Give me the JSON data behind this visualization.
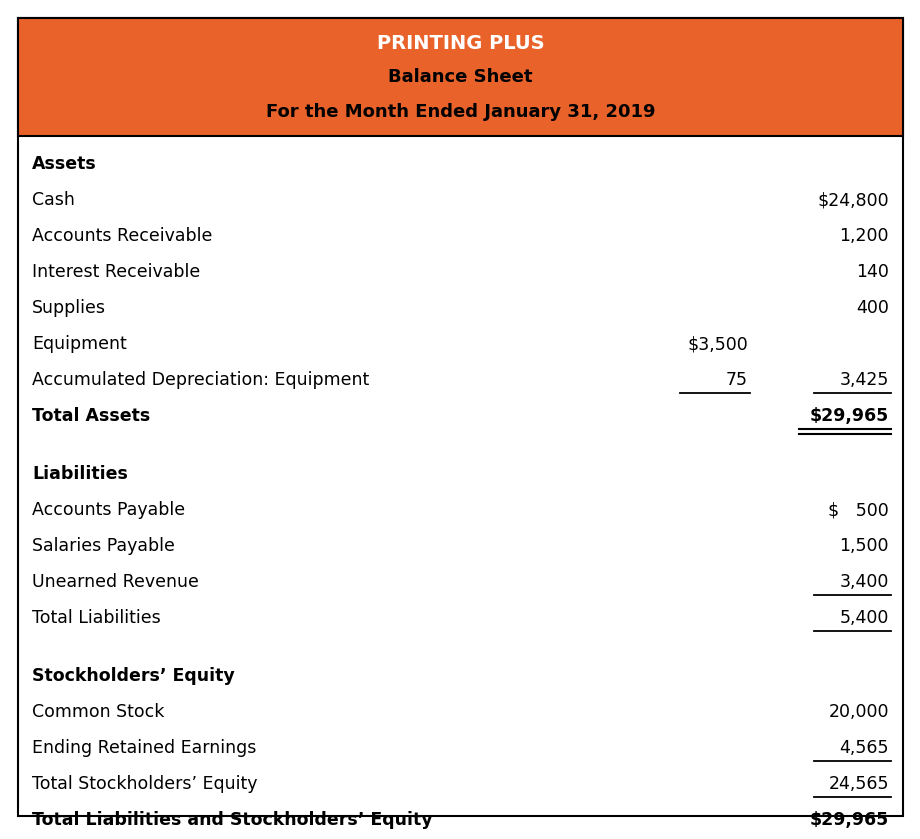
{
  "title_line1": "PRINTING PLUS",
  "title_line2": "Balance Sheet",
  "title_line3": "For the Month Ended January 31, 2019",
  "header_bg": "#E8622A",
  "header_text_color1": "#FFFFFF",
  "header_text_color2": "#000000",
  "border_color": "#000000",
  "bg_color": "#FFFFFF",
  "fig_width": 9.01,
  "fig_height": 8.14,
  "dpi": 100,
  "rows": [
    {
      "label": "Assets",
      "col1": "",
      "col2": "",
      "bold": true,
      "underline_col1": false,
      "underline_col2": false,
      "double_underline": false,
      "gap_before": false
    },
    {
      "label": "Cash",
      "col1": "",
      "col2": "$24,800",
      "bold": false,
      "underline_col1": false,
      "underline_col2": false,
      "double_underline": false,
      "gap_before": false
    },
    {
      "label": "Accounts Receivable",
      "col1": "",
      "col2": "1,200",
      "bold": false,
      "underline_col1": false,
      "underline_col2": false,
      "double_underline": false,
      "gap_before": false
    },
    {
      "label": "Interest Receivable",
      "col1": "",
      "col2": "140",
      "bold": false,
      "underline_col1": false,
      "underline_col2": false,
      "double_underline": false,
      "gap_before": false
    },
    {
      "label": "Supplies",
      "col1": "",
      "col2": "400",
      "bold": false,
      "underline_col1": false,
      "underline_col2": false,
      "double_underline": false,
      "gap_before": false
    },
    {
      "label": "Equipment",
      "col1": "$3,500",
      "col2": "",
      "bold": false,
      "underline_col1": false,
      "underline_col2": false,
      "double_underline": false,
      "gap_before": false
    },
    {
      "label": "Accumulated Depreciation: Equipment",
      "col1": "75",
      "col2": "3,425",
      "bold": false,
      "underline_col1": true,
      "underline_col2": true,
      "double_underline": false,
      "gap_before": false
    },
    {
      "label": "Total Assets",
      "col1": "",
      "col2": "$29,965",
      "bold": true,
      "underline_col1": false,
      "underline_col2": false,
      "double_underline": true,
      "gap_before": false
    },
    {
      "label": "Liabilities",
      "col1": "",
      "col2": "",
      "bold": true,
      "underline_col1": false,
      "underline_col2": false,
      "double_underline": false,
      "gap_before": true
    },
    {
      "label": "Accounts Payable",
      "col1": "",
      "col2": "$   500",
      "bold": false,
      "underline_col1": false,
      "underline_col2": false,
      "double_underline": false,
      "gap_before": false
    },
    {
      "label": "Salaries Payable",
      "col1": "",
      "col2": "1,500",
      "bold": false,
      "underline_col1": false,
      "underline_col2": false,
      "double_underline": false,
      "gap_before": false
    },
    {
      "label": "Unearned Revenue",
      "col1": "",
      "col2": "3,400",
      "bold": false,
      "underline_col1": false,
      "underline_col2": true,
      "double_underline": false,
      "gap_before": false
    },
    {
      "label": "Total Liabilities",
      "col1": "",
      "col2": "5,400",
      "bold": false,
      "underline_col1": false,
      "underline_col2": true,
      "double_underline": false,
      "gap_before": false
    },
    {
      "label": "Stockholders’ Equity",
      "col1": "",
      "col2": "",
      "bold": true,
      "underline_col1": false,
      "underline_col2": false,
      "double_underline": false,
      "gap_before": true
    },
    {
      "label": "Common Stock",
      "col1": "",
      "col2": "20,000",
      "bold": false,
      "underline_col1": false,
      "underline_col2": false,
      "double_underline": false,
      "gap_before": false
    },
    {
      "label": "Ending Retained Earnings",
      "col1": "",
      "col2": "4,565",
      "bold": false,
      "underline_col1": false,
      "underline_col2": true,
      "double_underline": false,
      "gap_before": false
    },
    {
      "label": "Total Stockholders’ Equity",
      "col1": "",
      "col2": "24,565",
      "bold": false,
      "underline_col1": false,
      "underline_col2": true,
      "double_underline": false,
      "gap_before": false
    },
    {
      "label": "Total Liabilities and Stockholders’ Equity",
      "col1": "",
      "col2": "$29,965",
      "bold": true,
      "underline_col1": false,
      "underline_col2": false,
      "double_underline": true,
      "gap_before": false
    }
  ]
}
